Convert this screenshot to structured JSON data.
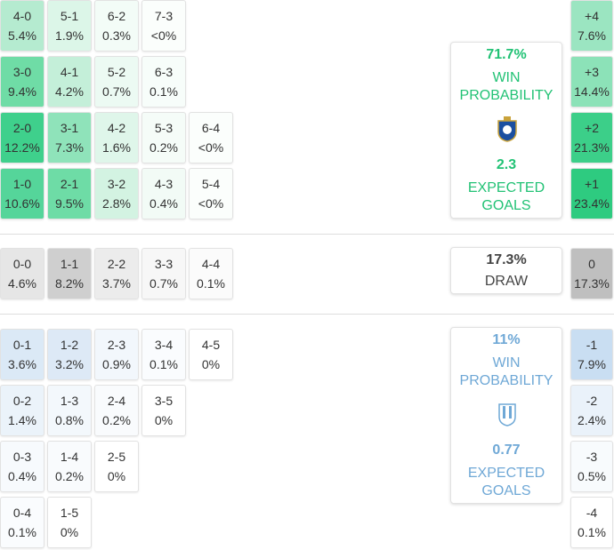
{
  "home": {
    "rows": [
      [
        {
          "score": "4-0",
          "prob": "5.4%",
          "color": "#b5ebd0"
        },
        {
          "score": "5-1",
          "prob": "1.9%",
          "color": "#dcf6e8"
        },
        {
          "score": "6-2",
          "prob": "0.3%",
          "color": "#f3fcf7"
        },
        {
          "score": "7-3",
          "prob": "<0%",
          "color": "#fbfefc"
        }
      ],
      [
        {
          "score": "3-0",
          "prob": "9.4%",
          "color": "#6fdca6"
        },
        {
          "score": "4-1",
          "prob": "4.2%",
          "color": "#c4efd9"
        },
        {
          "score": "5-2",
          "prob": "0.7%",
          "color": "#ecfaf3"
        },
        {
          "score": "6-3",
          "prob": "0.1%",
          "color": "#f7fdfa"
        }
      ],
      [
        {
          "score": "2-0",
          "prob": "12.2%",
          "color": "#3fd08c"
        },
        {
          "score": "3-1",
          "prob": "7.3%",
          "color": "#8fe3ba"
        },
        {
          "score": "4-2",
          "prob": "1.6%",
          "color": "#dff6ea"
        },
        {
          "score": "5-3",
          "prob": "0.2%",
          "color": "#f5fcf8"
        },
        {
          "score": "6-4",
          "prob": "<0%",
          "color": "#fbfefc"
        }
      ],
      [
        {
          "score": "1-0",
          "prob": "10.6%",
          "color": "#55d59a"
        },
        {
          "score": "2-1",
          "prob": "9.5%",
          "color": "#6edca6"
        },
        {
          "score": "3-2",
          "prob": "2.8%",
          "color": "#d3f3e2"
        },
        {
          "score": "4-3",
          "prob": "0.4%",
          "color": "#f2fbf6"
        },
        {
          "score": "5-4",
          "prob": "<0%",
          "color": "#fbfefc"
        }
      ]
    ],
    "totals": [
      {
        "score": "+4",
        "prob": "7.6%",
        "color": "#9be5c1"
      },
      {
        "score": "+3",
        "prob": "14.4%",
        "color": "#8ce2b8"
      },
      {
        "score": "+2",
        "prob": "21.3%",
        "color": "#3ccf89"
      },
      {
        "score": "+1",
        "prob": "23.4%",
        "color": "#2ecb80"
      }
    ],
    "summary": {
      "win_pct": "71.7%",
      "win_label": "WIN PROBABILITY",
      "xg": "2.3",
      "xg_label": "EXPECTED GOALS"
    }
  },
  "draw": {
    "rows": [
      [
        {
          "score": "0-0",
          "prob": "4.6%",
          "color": "#e6e6e6"
        },
        {
          "score": "1-1",
          "prob": "8.2%",
          "color": "#cfcfcf"
        },
        {
          "score": "2-2",
          "prob": "3.7%",
          "color": "#ececec"
        },
        {
          "score": "3-3",
          "prob": "0.7%",
          "color": "#f7f7f7"
        },
        {
          "score": "4-4",
          "prob": "0.1%",
          "color": "#fbfbfb"
        }
      ]
    ],
    "totals": [
      {
        "score": "0",
        "prob": "17.3%",
        "color": "#bfbfbf"
      }
    ],
    "summary": {
      "pct": "17.3%",
      "label": "DRAW"
    }
  },
  "away": {
    "rows": [
      [
        {
          "score": "0-1",
          "prob": "3.6%",
          "color": "#dbe9f6"
        },
        {
          "score": "1-2",
          "prob": "3.2%",
          "color": "#dde9f6"
        },
        {
          "score": "2-3",
          "prob": "0.9%",
          "color": "#f2f7fc"
        },
        {
          "score": "3-4",
          "prob": "0.1%",
          "color": "#fafcfe"
        },
        {
          "score": "4-5",
          "prob": "0%",
          "color": "#ffffff"
        }
      ],
      [
        {
          "score": "0-2",
          "prob": "1.4%",
          "color": "#ebf3fa"
        },
        {
          "score": "1-3",
          "prob": "0.8%",
          "color": "#f3f8fc"
        },
        {
          "score": "2-4",
          "prob": "0.2%",
          "color": "#f9fbfd"
        },
        {
          "score": "3-5",
          "prob": "0%",
          "color": "#ffffff"
        }
      ],
      [
        {
          "score": "0-3",
          "prob": "0.4%",
          "color": "#f7fafd"
        },
        {
          "score": "1-4",
          "prob": "0.2%",
          "color": "#f9fbfd"
        },
        {
          "score": "2-5",
          "prob": "0%",
          "color": "#ffffff"
        }
      ],
      [
        {
          "score": "0-4",
          "prob": "0.1%",
          "color": "#fafcfe"
        },
        {
          "score": "1-5",
          "prob": "0%",
          "color": "#ffffff"
        }
      ]
    ],
    "totals": [
      {
        "score": "-1",
        "prob": "7.9%",
        "color": "#c9def2"
      },
      {
        "score": "-2",
        "prob": "2.4%",
        "color": "#eaf2fa"
      },
      {
        "score": "-3",
        "prob": "0.5%",
        "color": "#f8fbfd"
      },
      {
        "score": "-4",
        "prob": "0.1%",
        "color": "#ffffff"
      }
    ],
    "summary": {
      "win_pct": "11%",
      "win_label": "WIN PROBABILITY",
      "xg": "0.77",
      "xg_label": "EXPECTED GOALS"
    }
  }
}
